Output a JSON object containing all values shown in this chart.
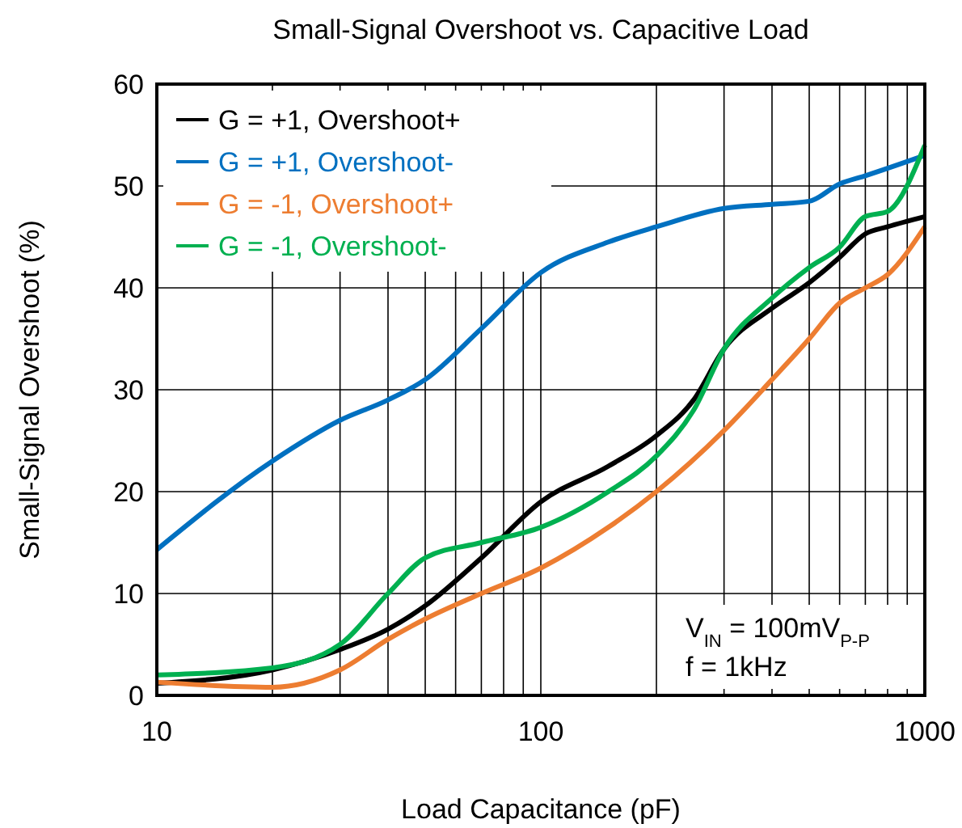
{
  "chart_data": {
    "type": "line",
    "title": "Small-Signal Overshoot vs. Capacitive Load",
    "xlabel": "Load Capacitance (pF)",
    "ylabel": "Small-Signal Overshoot (%)",
    "log": "x",
    "grid": true,
    "legend": "top left",
    "xlim": [
      10,
      1000
    ],
    "ylim": [
      0,
      60
    ],
    "xticks": [
      10,
      {
        "value": 20,
        "label": null
      },
      {
        "value": 30,
        "label": null
      },
      {
        "value": 40,
        "label": null
      },
      {
        "value": 50,
        "label": null
      },
      {
        "value": 60,
        "label": null
      },
      {
        "value": 70,
        "label": null
      },
      {
        "value": 80,
        "label": null
      },
      {
        "value": 90,
        "label": null
      },
      100,
      {
        "value": 200,
        "label": null
      },
      {
        "value": 300,
        "label": null
      },
      {
        "value": 400,
        "label": null
      },
      {
        "value": 500,
        "label": null
      },
      {
        "value": 600,
        "label": null
      },
      {
        "value": 700,
        "label": null
      },
      {
        "value": 800,
        "label": null
      },
      {
        "value": 900,
        "label": null
      },
      1000
    ],
    "yticks": [
      0,
      10,
      20,
      30,
      40,
      50,
      60
    ],
    "annotations": [
      "V$_{IN}$ = 100mV$_{P-P}$",
      "f = 1kHz"
    ],
    "series": [
      {
        "name": "G = +1, Overshoot+",
        "color": "#000000",
        "x": [
          10,
          20,
          30,
          40,
          50,
          70,
          100,
          150,
          200,
          250,
          300,
          400,
          500,
          600,
          700,
          800,
          1000
        ],
        "values": [
          1.2,
          2.5,
          4.5,
          6.5,
          8.8,
          13.5,
          19,
          22.5,
          25.5,
          29,
          34,
          38,
          40.5,
          43,
          45.3,
          46,
          47
        ]
      },
      {
        "name": "G = +1, Overshoot-",
        "color": "#0070c0",
        "x": [
          10,
          20,
          30,
          40,
          50,
          70,
          100,
          150,
          200,
          300,
          400,
          500,
          600,
          700,
          1000
        ],
        "values": [
          14.3,
          23,
          27,
          29,
          31,
          36,
          41.5,
          44.5,
          46,
          47.8,
          48.2,
          48.5,
          50.2,
          51,
          53
        ]
      },
      {
        "name": "G = -1, Overshoot+",
        "color": "#ed7d31",
        "x": [
          10,
          20,
          30,
          40,
          50,
          70,
          100,
          150,
          200,
          300,
          400,
          500,
          600,
          700,
          800,
          1000
        ],
        "values": [
          1.3,
          0.8,
          2.5,
          5.5,
          7.5,
          10,
          12.5,
          16.5,
          20,
          26,
          31,
          35,
          38.5,
          40,
          41.3,
          46
        ]
      },
      {
        "name": "G = -1, Overshoot-",
        "color": "#00b050",
        "x": [
          10,
          20,
          30,
          40,
          50,
          70,
          100,
          150,
          200,
          250,
          300,
          400,
          500,
          600,
          700,
          800,
          1000
        ],
        "values": [
          2,
          2.7,
          5,
          10,
          13.5,
          15,
          16.5,
          20,
          23.5,
          28,
          34,
          39,
          42,
          44,
          47,
          47.5,
          54
        ]
      }
    ]
  }
}
